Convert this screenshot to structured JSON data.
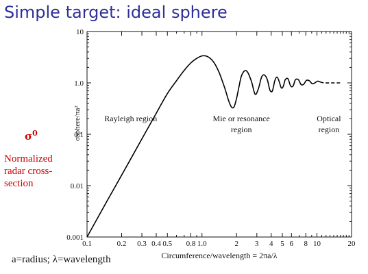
{
  "slide": {
    "title": "Simple target: ideal sphere",
    "symbol": "σ",
    "symbol_superscript": "0",
    "side_note": "Normalized radar cross-section",
    "footnote": "a=radius; λ=wavelength"
  },
  "chart_data": {
    "type": "line",
    "title": "",
    "xlabel": "Circumference/wavelength = 2πa/λ",
    "ylabel": "σsphere/πa²",
    "xscale": "log",
    "yscale": "log",
    "xlim": [
      0.1,
      20
    ],
    "ylim": [
      0.001,
      10
    ],
    "x_ticks": [
      0.1,
      0.2,
      0.3,
      0.4,
      0.5,
      0.8,
      1.0,
      2,
      3,
      4,
      5,
      6,
      8,
      10,
      20
    ],
    "x_tick_labels": [
      "0.1",
      "0.2",
      "0.3",
      "0.4",
      "0.5",
      "0.8",
      "1.0",
      "2",
      "3",
      "4",
      "5",
      "6",
      "8",
      "10",
      "20"
    ],
    "y_ticks": [
      0.001,
      0.01,
      0.1,
      1,
      10
    ],
    "y_tick_labels": [
      "0.001",
      "0.01",
      "0.1",
      "1.0",
      "10"
    ],
    "grid": false,
    "line_color": "#000000",
    "series": [
      {
        "style": "solid",
        "x": [
          0.1,
          0.15,
          0.2,
          0.3,
          0.4,
          0.5,
          0.6,
          0.7,
          0.8,
          0.9,
          1.0,
          1.1,
          1.2,
          1.3,
          1.4,
          1.5,
          1.6,
          1.7,
          1.8,
          1.9,
          2.0,
          2.1,
          2.2,
          2.35,
          2.5,
          2.7,
          2.9,
          3.1,
          3.3,
          3.5,
          3.7,
          3.9,
          4.1,
          4.3,
          4.5,
          4.7,
          4.9,
          5.1,
          5.3,
          5.6,
          5.9,
          6.2,
          6.5,
          6.9,
          7.3,
          7.7,
          8.1,
          8.6,
          9.1,
          9.6,
          10.1,
          10.7
        ],
        "y": [
          0.001,
          0.0051,
          0.016,
          0.081,
          0.256,
          0.62,
          1.1,
          1.75,
          2.45,
          3.0,
          3.35,
          3.3,
          2.9,
          2.3,
          1.65,
          1.1,
          0.72,
          0.46,
          0.34,
          0.34,
          0.5,
          0.85,
          1.35,
          1.72,
          1.6,
          1.05,
          0.6,
          0.78,
          1.3,
          1.42,
          1.15,
          0.72,
          0.7,
          1.1,
          1.3,
          1.05,
          0.8,
          0.86,
          1.15,
          1.2,
          0.87,
          0.87,
          1.15,
          1.15,
          0.92,
          0.95,
          1.12,
          1.1,
          0.96,
          1.0,
          1.08,
          1.04
        ]
      },
      {
        "style": "dashed",
        "x": [
          10.7,
          11.5,
          13,
          15,
          16.5
        ],
        "y": [
          1.04,
          1.0,
          1.0,
          1.0,
          1.0
        ]
      }
    ],
    "annotations": [
      {
        "text": "Rayleigh region",
        "x": 0.24,
        "y": 0.18
      },
      {
        "text": "Mie or resonance",
        "x": 2.2,
        "y": 0.18
      },
      {
        "text": "region",
        "x": 2.2,
        "y": 0.11
      },
      {
        "text": "Optical",
        "x": 12.7,
        "y": 0.18
      },
      {
        "text": "region",
        "x": 12.7,
        "y": 0.11
      }
    ]
  }
}
